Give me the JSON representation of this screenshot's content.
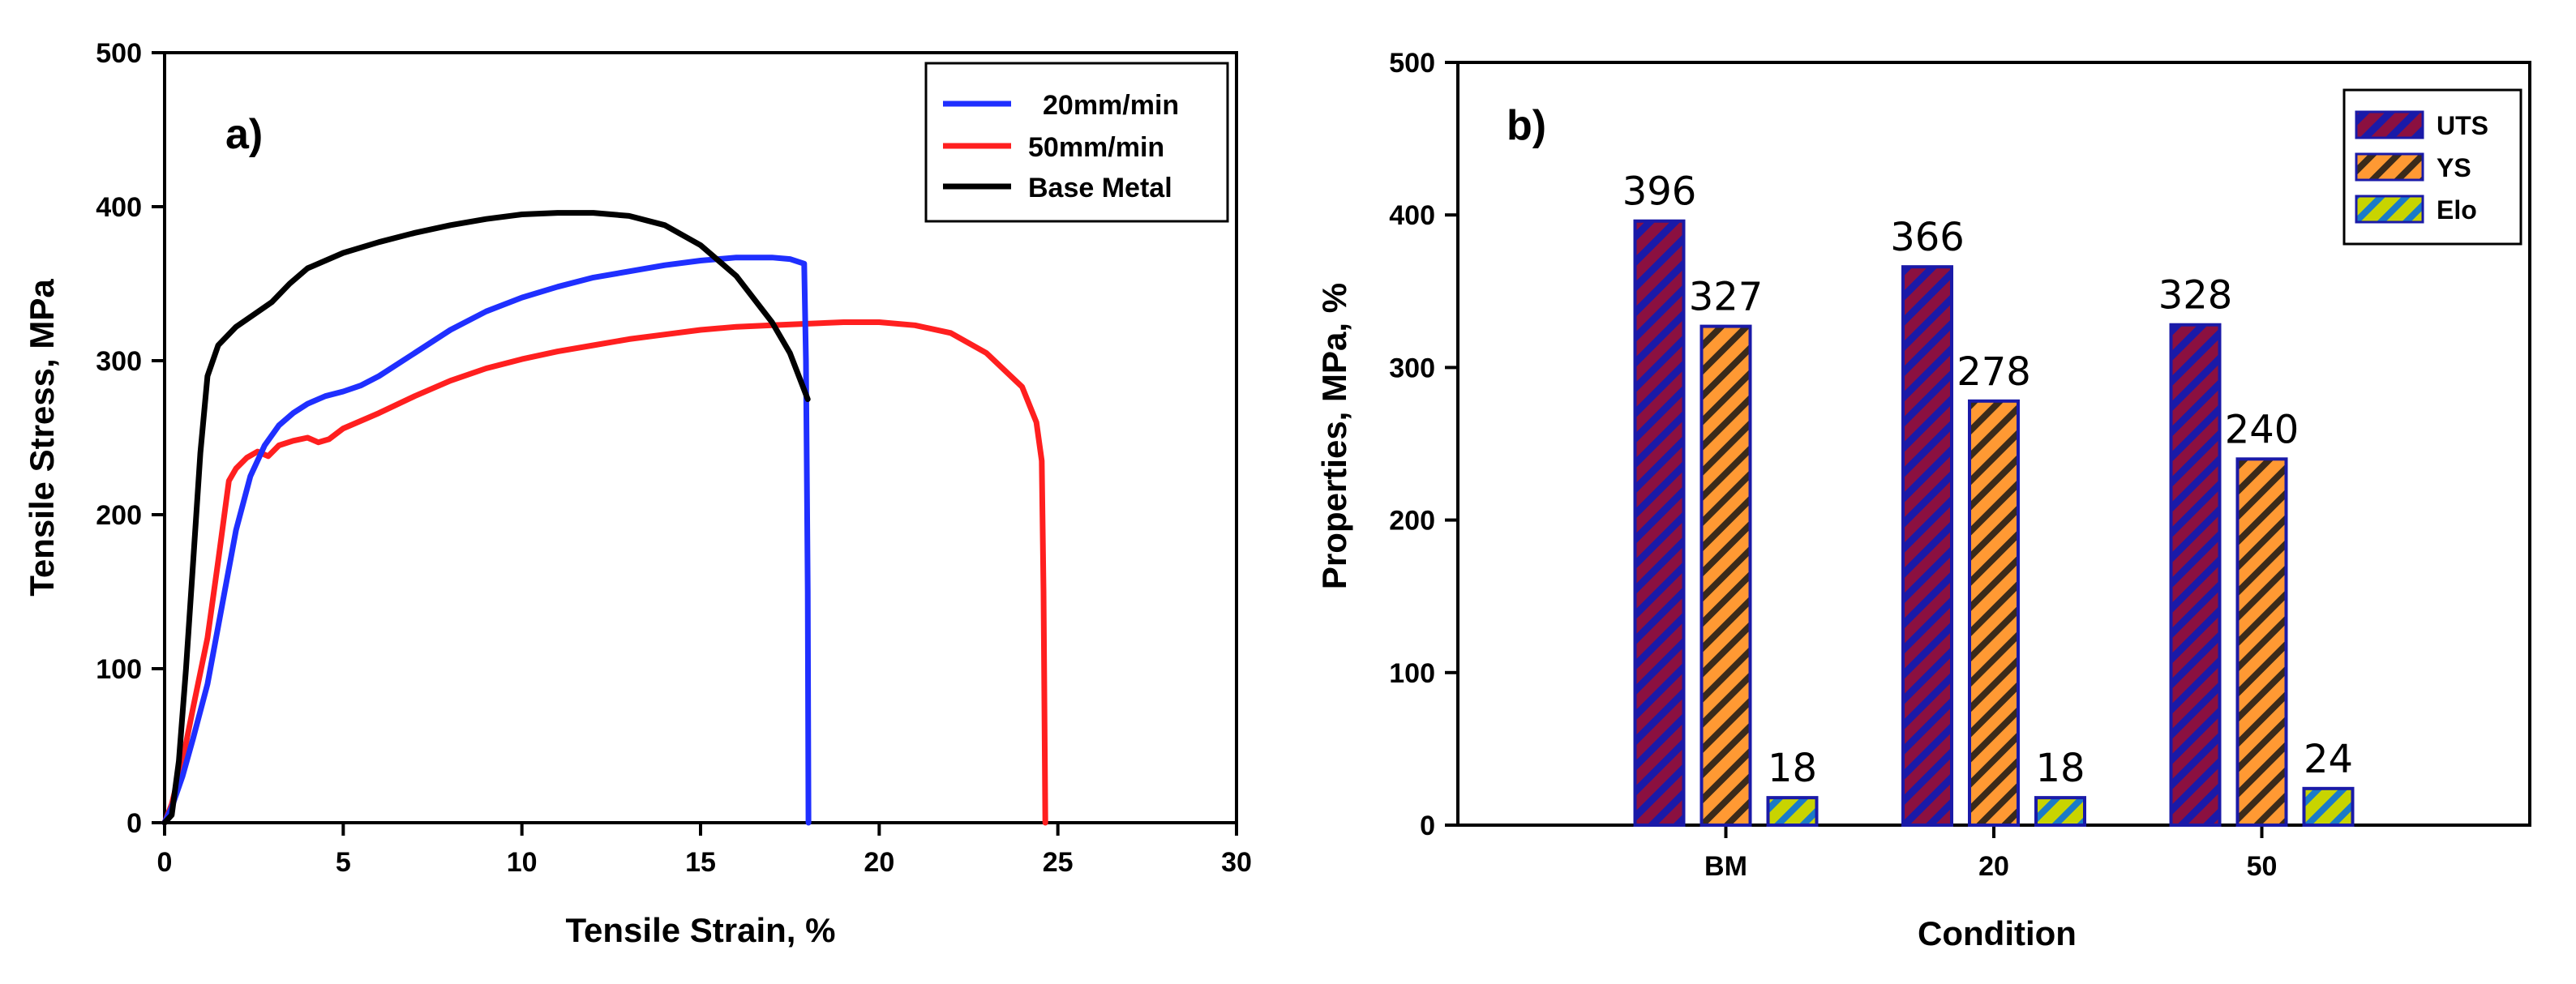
{
  "chart_data": [
    {
      "type": "line",
      "panel_label": "a)",
      "xlabel": "Tensile Strain, %",
      "ylabel": "Tensile Stress, MPa",
      "xlim": [
        0,
        30
      ],
      "ylim": [
        0,
        500
      ],
      "xticks": [
        0,
        5,
        10,
        15,
        20,
        25,
        30
      ],
      "yticks": [
        0,
        100,
        200,
        300,
        400,
        500
      ],
      "legend_position": "top-right",
      "series": [
        {
          "name": "20mm/min",
          "color": "#1f2fff",
          "points": [
            [
              0,
              0
            ],
            [
              0.2,
              10
            ],
            [
              0.5,
              30
            ],
            [
              0.8,
              55
            ],
            [
              1.2,
              90
            ],
            [
              1.6,
              140
            ],
            [
              2.0,
              190
            ],
            [
              2.4,
              225
            ],
            [
              2.8,
              245
            ],
            [
              3.2,
              258
            ],
            [
              3.6,
              266
            ],
            [
              4.0,
              272
            ],
            [
              4.5,
              277
            ],
            [
              5.0,
              280
            ],
            [
              5.5,
              284
            ],
            [
              6.0,
              290
            ],
            [
              7.0,
              305
            ],
            [
              8.0,
              320
            ],
            [
              9.0,
              332
            ],
            [
              10.0,
              341
            ],
            [
              11.0,
              348
            ],
            [
              12.0,
              354
            ],
            [
              13.0,
              358
            ],
            [
              14.0,
              362
            ],
            [
              15.0,
              365
            ],
            [
              16.0,
              367
            ],
            [
              17.0,
              367
            ],
            [
              17.5,
              366
            ],
            [
              17.9,
              363
            ],
            [
              17.95,
              300
            ],
            [
              18.0,
              150
            ],
            [
              18.02,
              0
            ]
          ]
        },
        {
          "name": "50mm/min",
          "color": "#ff1f1f",
          "points": [
            [
              0,
              0
            ],
            [
              0.2,
              12
            ],
            [
              0.5,
              40
            ],
            [
              0.8,
              75
            ],
            [
              1.2,
              120
            ],
            [
              1.5,
              170
            ],
            [
              1.8,
              222
            ],
            [
              2.0,
              230
            ],
            [
              2.3,
              237
            ],
            [
              2.6,
              241
            ],
            [
              2.9,
              238
            ],
            [
              3.2,
              245
            ],
            [
              3.6,
              248
            ],
            [
              4.0,
              250
            ],
            [
              4.3,
              247
            ],
            [
              4.6,
              249
            ],
            [
              5.0,
              256
            ],
            [
              6.0,
              266
            ],
            [
              7.0,
              277
            ],
            [
              8.0,
              287
            ],
            [
              9.0,
              295
            ],
            [
              10.0,
              301
            ],
            [
              11.0,
              306
            ],
            [
              12.0,
              310
            ],
            [
              13.0,
              314
            ],
            [
              14.0,
              317
            ],
            [
              15.0,
              320
            ],
            [
              16.0,
              322
            ],
            [
              17.0,
              323
            ],
            [
              18.0,
              324
            ],
            [
              19.0,
              325
            ],
            [
              20.0,
              325
            ],
            [
              21.0,
              323
            ],
            [
              22.0,
              318
            ],
            [
              23.0,
              305
            ],
            [
              24.0,
              283
            ],
            [
              24.4,
              260
            ],
            [
              24.55,
              235
            ],
            [
              24.6,
              150
            ],
            [
              24.65,
              0
            ]
          ]
        },
        {
          "name": "Base Metal",
          "color": "#000000",
          "points": [
            [
              0,
              0
            ],
            [
              0.2,
              5
            ],
            [
              0.4,
              40
            ],
            [
              0.6,
              100
            ],
            [
              0.8,
              170
            ],
            [
              1.0,
              240
            ],
            [
              1.2,
              290
            ],
            [
              1.5,
              310
            ],
            [
              2.0,
              322
            ],
            [
              2.5,
              330
            ],
            [
              3.0,
              338
            ],
            [
              3.5,
              350
            ],
            [
              4.0,
              360
            ],
            [
              5.0,
              370
            ],
            [
              6.0,
              377
            ],
            [
              7.0,
              383
            ],
            [
              8.0,
              388
            ],
            [
              9.0,
              392
            ],
            [
              10.0,
              395
            ],
            [
              11.0,
              396
            ],
            [
              12.0,
              396
            ],
            [
              13.0,
              394
            ],
            [
              14.0,
              388
            ],
            [
              15.0,
              375
            ],
            [
              16.0,
              355
            ],
            [
              17.0,
              325
            ],
            [
              17.5,
              305
            ],
            [
              18.0,
              275
            ]
          ]
        }
      ]
    },
    {
      "type": "bar",
      "panel_label": "b)",
      "xlabel": "Condition",
      "ylabel": "Properties, MPa, %",
      "ylim": [
        0,
        500
      ],
      "yticks": [
        0,
        100,
        200,
        300,
        400,
        500
      ],
      "categories": [
        "BM",
        "20",
        "50"
      ],
      "legend_position": "top-right",
      "series": [
        {
          "name": "UTS",
          "values": [
            396,
            366,
            328
          ],
          "labels": [
            "396",
            "366",
            "328"
          ],
          "fill": "#8b1040",
          "stripe": "#1a1aa8"
        },
        {
          "name": "YS",
          "values": [
            327,
            278,
            240
          ],
          "labels": [
            "327",
            "278",
            "240"
          ],
          "fill": "#ff9933",
          "stripe": "#3a2a1a"
        },
        {
          "name": "Elo",
          "values": [
            18,
            18,
            24
          ],
          "labels": [
            "18",
            "18",
            "24"
          ],
          "fill": "#c8d400",
          "stripe": "#1a7ac8"
        }
      ]
    }
  ]
}
